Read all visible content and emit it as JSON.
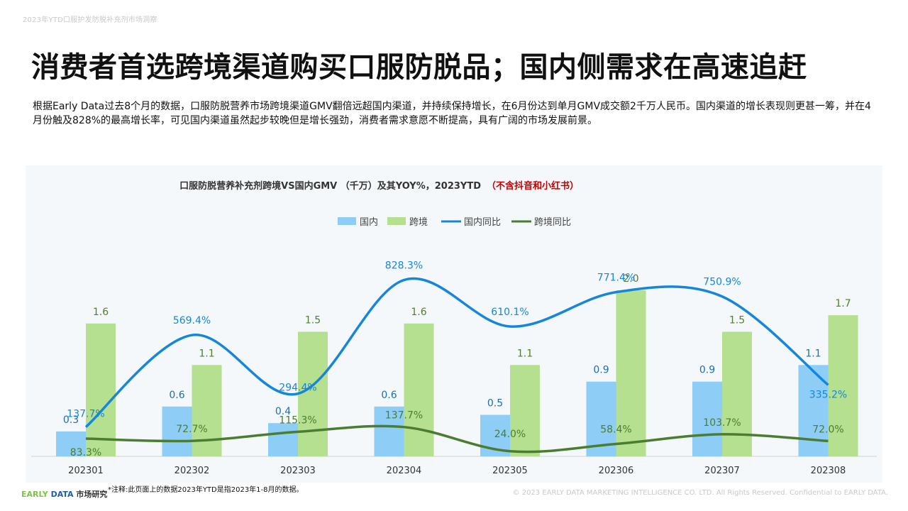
{
  "page": {
    "header_small": "2023年YTD口服护发防脱补充剂市场洞察",
    "title": "消费者首选跨境渠道购买口服防脱品；国内侧需求在高速追赶",
    "description": "根据Early Data过去8个月的数据，口服防脱营养市场跨境渠道GMV翻倍远超国内渠道，并持续保持增长，在6月份达到单月GMV成交额2千万人民币。国内渠道的增长表现则更甚一筹，并在4月份触及828%的最高增长率，可见国内渠道虽然起步较晚但是增长强劲，消费者需求意愿不断提高，具有广阔的市场发展前景。",
    "footnote": "*注释:此页面上的数据2023年YTD是指2023年1-8月的数据。",
    "logo": {
      "early": "EARLY",
      "data": "DATA",
      "cn": "市场研究"
    },
    "copyright": "© 2023 EARLY DATA MARKETING INTELLIGENCE CO. LTD. All Rights Reserved. Confidential to EARLY DATA."
  },
  "chart_data": {
    "type": "bar",
    "title": "口服防脱营养补充剂跨境VS国内GMV （千万）及其YOY%，2023YTD",
    "title_note": "（不含抖音和小红书）",
    "categories": [
      "202301",
      "202302",
      "202303",
      "202304",
      "202305",
      "202306",
      "202307",
      "202308"
    ],
    "series": [
      {
        "name": "国内",
        "kind": "bar",
        "color": "#8ecdf6",
        "values": [
          0.3,
          0.6,
          0.4,
          0.6,
          0.5,
          0.9,
          0.9,
          1.1
        ],
        "labels": [
          "0.3",
          "0.6",
          "0.4",
          "0.6",
          "0.5",
          "0.9",
          "0.9",
          "1.1"
        ]
      },
      {
        "name": "跨境",
        "kind": "bar",
        "color": "#b5e08f",
        "values": [
          1.6,
          1.1,
          1.5,
          1.6,
          1.1,
          2.0,
          1.5,
          1.7
        ],
        "labels": [
          "1.6",
          "1.1",
          "1.5",
          "1.6",
          "1.1",
          "2.0",
          "1.5",
          "1.7"
        ]
      },
      {
        "name": "国内同比",
        "kind": "line",
        "color": "#1686d9",
        "values": [
          137.7,
          569.4,
          294.4,
          828.3,
          610.1,
          771.4,
          750.9,
          335.2
        ],
        "labels": [
          "137.7%",
          "569.4%",
          "294.4%",
          "828.3%",
          "610.1%",
          "771.4%",
          "750.9%",
          "335.2%"
        ]
      },
      {
        "name": "跨境同比",
        "kind": "line",
        "color": "#4a7d32",
        "values": [
          83.3,
          72.7,
          115.3,
          137.7,
          24.0,
          58.4,
          103.7,
          72.0
        ],
        "labels": [
          "83.3%",
          "72.7%",
          "115.3%",
          "137.7%",
          "24.0%",
          "58.4%",
          "103.7%",
          "72.0%"
        ]
      }
    ],
    "legend_position": "top-center",
    "grid": false
  }
}
